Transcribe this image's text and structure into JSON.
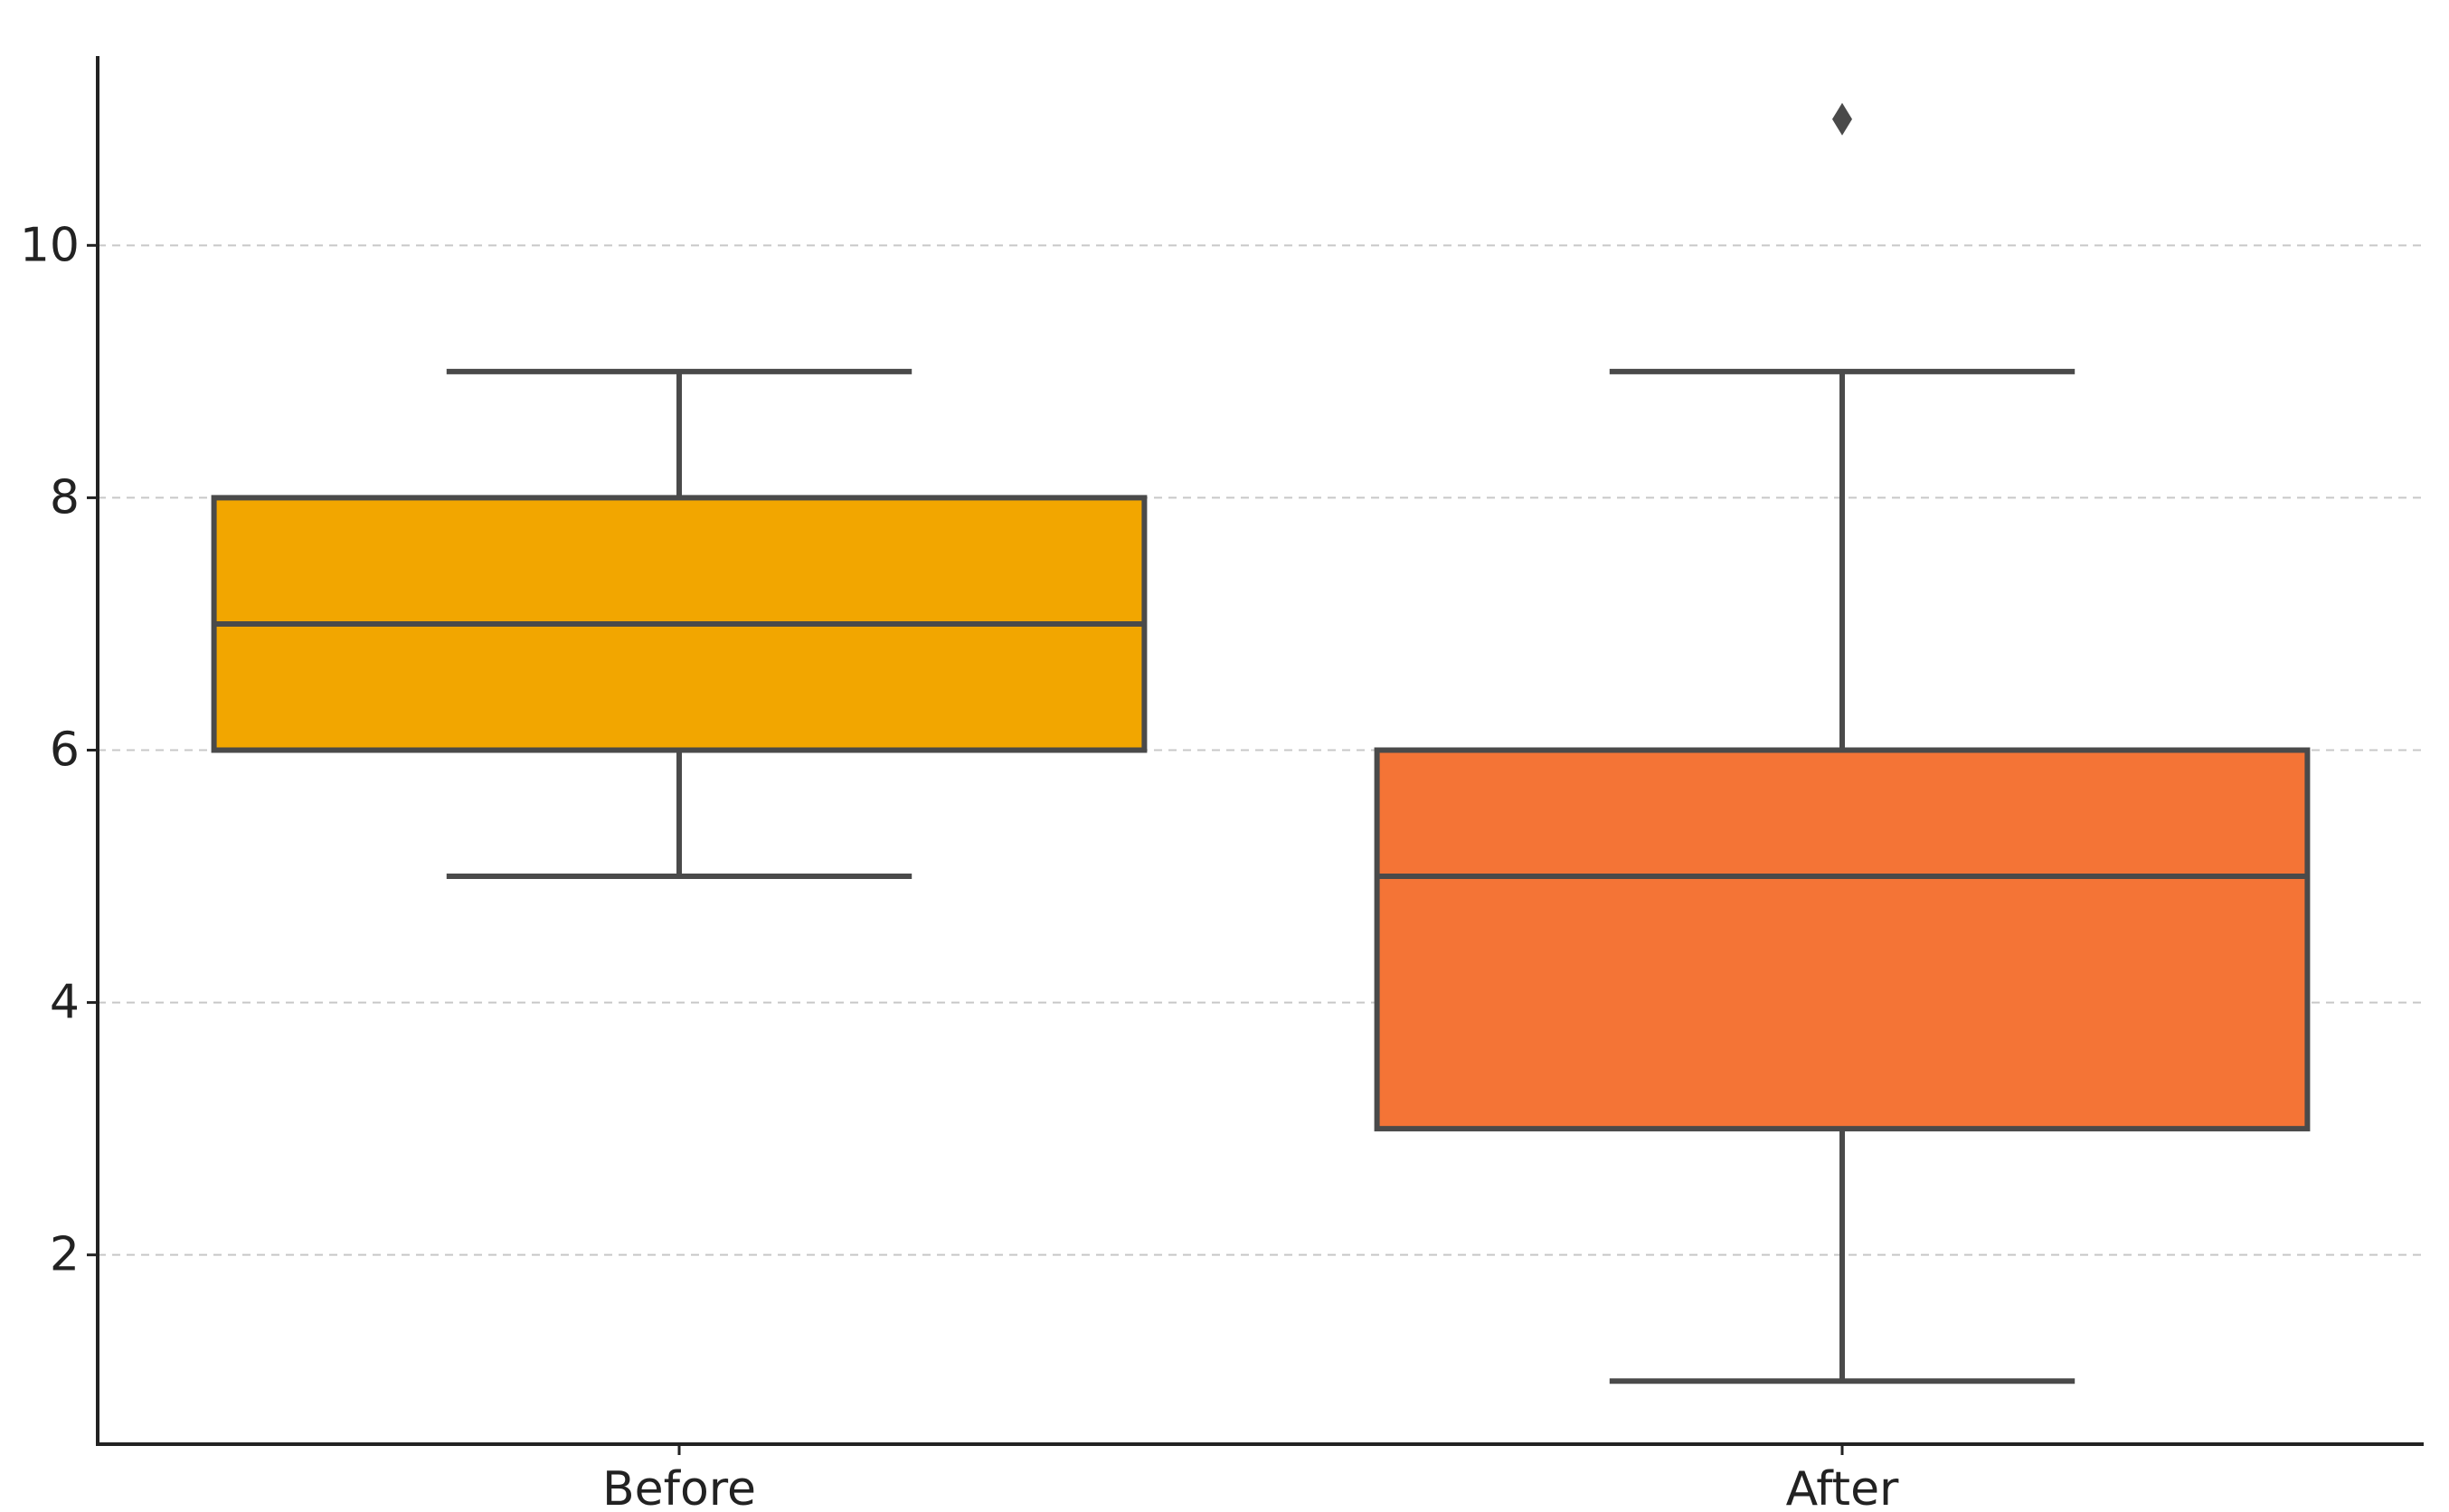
{
  "chart_data": {
    "type": "box",
    "title": "",
    "xlabel": "",
    "ylabel": "",
    "categories": [
      "Before",
      "After"
    ],
    "ylim": [
      0.5,
      11.5
    ],
    "yticks": [
      2,
      4,
      6,
      8,
      10
    ],
    "grid": "horizontal dashed",
    "series": [
      {
        "category": "Before",
        "min": 5,
        "q1": 6,
        "median": 7,
        "q3": 8,
        "max": 9,
        "outliers": [],
        "color": "#F2A600"
      },
      {
        "category": "After",
        "min": 1,
        "q1": 3,
        "median": 5,
        "q3": 6,
        "max": 9,
        "outliers": [
          11
        ],
        "color": "#F47436"
      }
    ],
    "line_color": "#4a4a4a",
    "outlier_marker": "diamond"
  }
}
